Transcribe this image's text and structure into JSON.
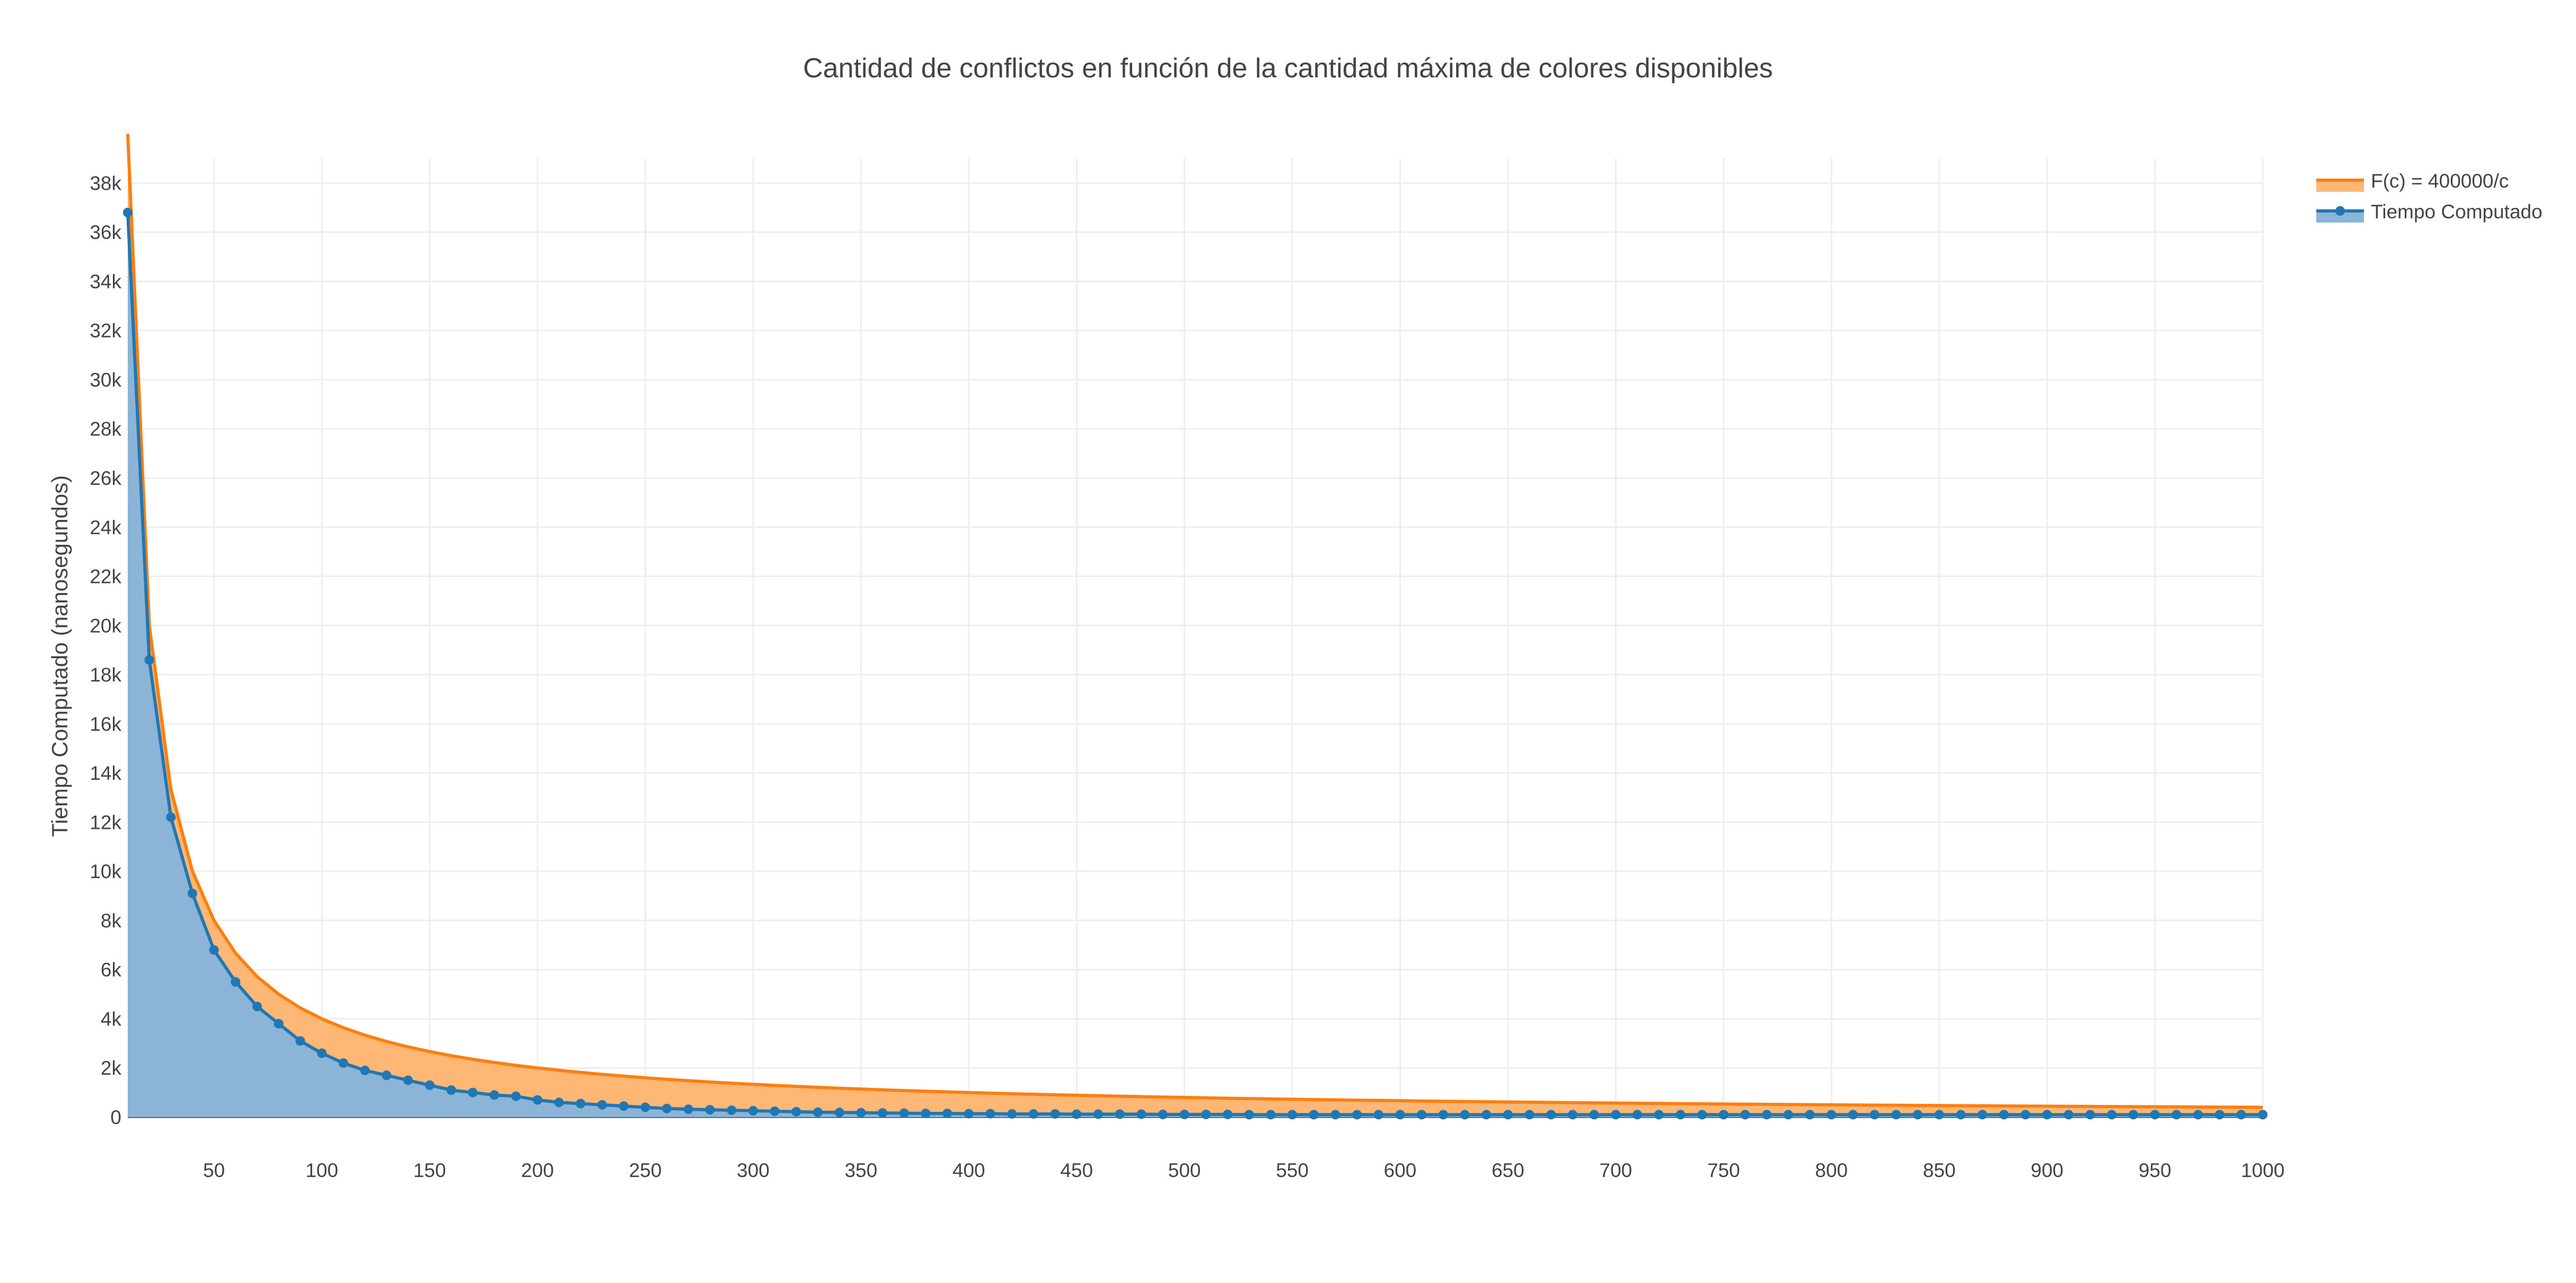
{
  "chart_data": {
    "type": "area",
    "title": "Cantidad de conflictos en función de la cantidad máxima de colores disponibles",
    "xlabel": "",
    "ylabel": "Tiempo Computado (nanosegundos)",
    "xlim": [
      10,
      1000
    ],
    "ylim": [
      0,
      39000
    ],
    "x_ticks": [
      50,
      100,
      150,
      200,
      250,
      300,
      350,
      400,
      450,
      500,
      550,
      600,
      650,
      700,
      750,
      800,
      850,
      900,
      950,
      1000
    ],
    "x_tick_labels": [
      "50",
      "100",
      "150",
      "200",
      "250",
      "300",
      "350",
      "400",
      "450",
      "500",
      "550",
      "600",
      "650",
      "700",
      "750",
      "800",
      "850",
      "900",
      "950",
      "1000"
    ],
    "y_ticks": [
      0,
      2000,
      4000,
      6000,
      8000,
      10000,
      12000,
      14000,
      16000,
      18000,
      20000,
      22000,
      24000,
      26000,
      28000,
      30000,
      32000,
      34000,
      36000,
      38000
    ],
    "y_tick_labels": [
      "0",
      "2k",
      "4k",
      "6k",
      "8k",
      "10k",
      "12k",
      "14k",
      "16k",
      "18k",
      "20k",
      "22k",
      "24k",
      "26k",
      "28k",
      "30k",
      "32k",
      "34k",
      "36k",
      "38k"
    ],
    "grid": true,
    "legend_position": "top-right",
    "series": [
      {
        "name": "F(c) = 400000/c",
        "color": "#ff7f0e",
        "fill": "tonexty",
        "x": [
          10,
          20,
          30,
          40,
          50,
          60,
          70,
          80,
          90,
          100,
          110,
          120,
          130,
          140,
          150,
          160,
          170,
          180,
          190,
          200,
          210,
          220,
          230,
          240,
          250,
          260,
          270,
          280,
          290,
          300,
          310,
          320,
          330,
          340,
          350,
          360,
          370,
          380,
          390,
          400,
          410,
          420,
          430,
          440,
          450,
          460,
          470,
          480,
          490,
          500,
          510,
          520,
          530,
          540,
          550,
          560,
          570,
          580,
          590,
          600,
          610,
          620,
          630,
          640,
          650,
          660,
          670,
          680,
          690,
          700,
          710,
          720,
          730,
          740,
          750,
          760,
          770,
          780,
          790,
          800,
          810,
          820,
          830,
          840,
          850,
          860,
          870,
          880,
          890,
          900,
          910,
          920,
          930,
          940,
          950,
          960,
          970,
          980,
          990,
          1000
        ],
        "y": [
          40000,
          20000,
          13333,
          10000,
          8000,
          6667,
          5714,
          5000,
          4444,
          4000,
          3636,
          3333,
          3077,
          2857,
          2667,
          2500,
          2353,
          2222,
          2105,
          2000,
          1905,
          1818,
          1739,
          1667,
          1600,
          1538,
          1481,
          1429,
          1379,
          1333,
          1290,
          1250,
          1212,
          1176,
          1143,
          1111,
          1081,
          1053,
          1026,
          1000,
          976,
          952,
          930,
          909,
          889,
          870,
          851,
          833,
          816,
          800,
          784,
          769,
          755,
          741,
          727,
          714,
          702,
          690,
          678,
          667,
          656,
          645,
          635,
          625,
          615,
          606,
          597,
          588,
          580,
          571,
          563,
          556,
          548,
          541,
          533,
          526,
          519,
          513,
          506,
          500,
          494,
          488,
          482,
          476,
          471,
          465,
          460,
          455,
          449,
          444,
          440,
          435,
          430,
          426,
          421,
          417,
          412,
          408,
          404,
          400
        ]
      },
      {
        "name": "Tiempo Computado",
        "color": "#1f77b4",
        "fill": "tozeroy",
        "markers": true,
        "x": [
          10,
          20,
          30,
          40,
          50,
          60,
          70,
          80,
          90,
          100,
          110,
          120,
          130,
          140,
          150,
          160,
          170,
          180,
          190,
          200,
          210,
          220,
          230,
          240,
          250,
          260,
          270,
          280,
          290,
          300,
          310,
          320,
          330,
          340,
          350,
          360,
          370,
          380,
          390,
          400,
          410,
          420,
          430,
          440,
          450,
          460,
          470,
          480,
          490,
          500,
          510,
          520,
          530,
          540,
          550,
          560,
          570,
          580,
          590,
          600,
          610,
          620,
          630,
          640,
          650,
          660,
          670,
          680,
          690,
          700,
          710,
          720,
          730,
          740,
          750,
          760,
          770,
          780,
          790,
          800,
          810,
          820,
          830,
          840,
          850,
          860,
          870,
          880,
          890,
          900,
          910,
          920,
          930,
          940,
          950,
          960,
          970,
          980,
          990,
          1000
        ],
        "y": [
          36800,
          18600,
          12200,
          9100,
          6800,
          5500,
          4500,
          3800,
          3100,
          2600,
          2200,
          1900,
          1700,
          1500,
          1300,
          1100,
          1000,
          900,
          850,
          700,
          600,
          550,
          500,
          450,
          400,
          350,
          320,
          300,
          280,
          260,
          240,
          220,
          200,
          190,
          180,
          170,
          160,
          150,
          150,
          140,
          140,
          130,
          130,
          130,
          120,
          120,
          120,
          120,
          110,
          110,
          110,
          110,
          100,
          100,
          100,
          100,
          100,
          100,
          100,
          100,
          100,
          100,
          100,
          100,
          100,
          100,
          100,
          100,
          100,
          100,
          100,
          100,
          100,
          100,
          100,
          100,
          100,
          100,
          100,
          100,
          100,
          100,
          100,
          100,
          100,
          100,
          100,
          100,
          100,
          100,
          100,
          100,
          100,
          100,
          100,
          100,
          100,
          100,
          100,
          100
        ]
      }
    ]
  }
}
